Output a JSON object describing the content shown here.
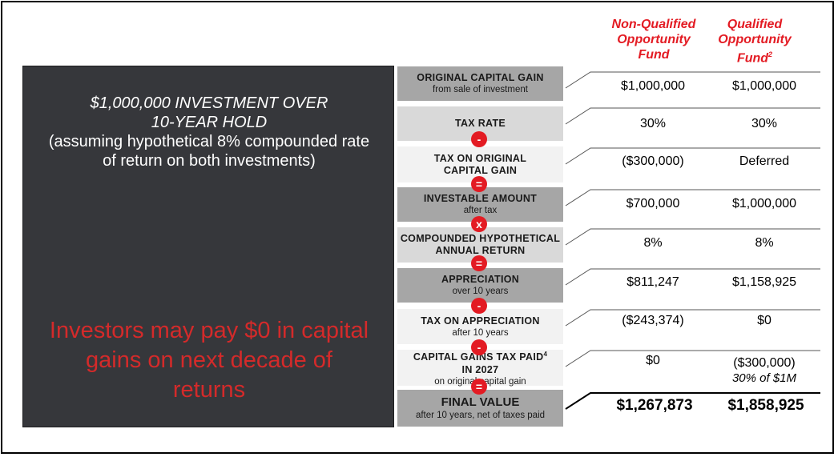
{
  "header": {
    "non_qualified": "Non-Qualified Opportunity Fund",
    "non_qualified_lines": [
      "Non-Qualified",
      "Opportunity",
      "Fund"
    ],
    "qualified_lines": [
      "Qualified",
      "Opportunity",
      "Fund"
    ],
    "qualified_footnote": "2"
  },
  "left_panel": {
    "title_italic_1": "$1,000,000 INVESTMENT OVER",
    "title_italic_2": "10-YEAR HOLD",
    "subtitle_1": "(assuming hypothetical 8% compounded rate",
    "subtitle_2": "of return on both investments)",
    "callout_1": "Investors may pay $0 in capital",
    "callout_2": "gains on next decade of",
    "callout_3": "returns"
  },
  "rows": [
    {
      "label": "ORIGINAL CAPITAL GAIN",
      "sub": "from sale of investment",
      "non_qualified": "$1,000,000",
      "qualified": "$1,000,000"
    },
    {
      "label": "TAX RATE",
      "sub": "",
      "non_qualified": "30%",
      "qualified": "30%"
    },
    {
      "label": "TAX ON ORIGINAL CAPITAL GAIN",
      "label_lines": [
        "TAX ON ORIGINAL",
        "CAPITAL GAIN"
      ],
      "sub": "",
      "non_qualified": "($300,000)",
      "qualified": "Deferred"
    },
    {
      "label": "INVESTABLE AMOUNT",
      "sub": "after tax",
      "non_qualified": "$700,000",
      "qualified": "$1,000,000"
    },
    {
      "label": "COMPOUNDED HYPOTHETICAL ANNUAL RETURN",
      "label_lines": [
        "COMPOUNDED HYPOTHETICAL",
        "ANNUAL RETURN"
      ],
      "sub": "",
      "non_qualified": "8%",
      "qualified": "8%"
    },
    {
      "label": "APPRECIATION",
      "sub": "over 10 years",
      "non_qualified": "$811,247",
      "qualified": "$1,158,925"
    },
    {
      "label": "TAX ON APPRECIATION",
      "sub": "after 10 years",
      "non_qualified": "($243,374)",
      "qualified": "$0"
    },
    {
      "label": "CAPITAL GAINS TAX PAID IN 2027",
      "label_lines": [
        "CAPITAL GAINS TAX PAID",
        "IN 2027"
      ],
      "footnote": "4",
      "sub": "on original capital gain",
      "non_qualified": "$0",
      "qualified": "($300,000)",
      "qualified_note": "30% of $1M"
    },
    {
      "label": "FINAL VALUE",
      "sub": "after 10 years, net of taxes paid",
      "non_qualified": "$1,267,873",
      "qualified": "$1,858,925"
    }
  ],
  "operators": [
    "-",
    "=",
    "x",
    "=",
    "-",
    "-",
    "="
  ],
  "colors": {
    "accent_red": "#e31b23",
    "panel_dark": "#36373b",
    "callout_red": "#d42a2a"
  }
}
